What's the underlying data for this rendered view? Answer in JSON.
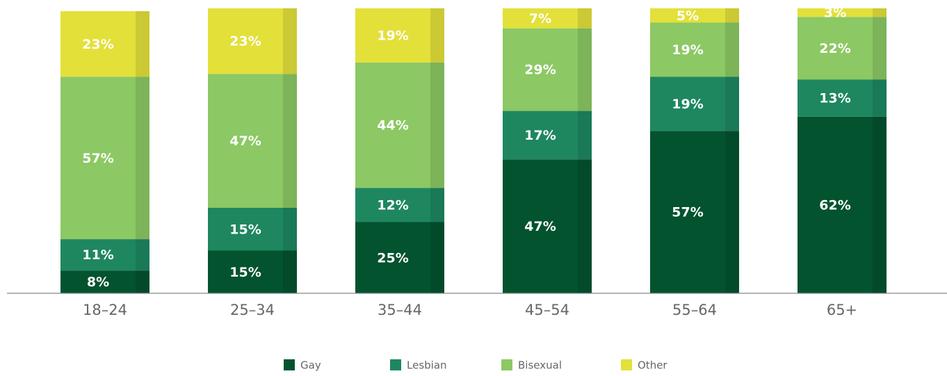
{
  "chart_data": {
    "type": "bar",
    "stacked": true,
    "categories": [
      "18–24",
      "25–34",
      "35–44",
      "45–54",
      "55–64",
      "65+"
    ],
    "ylim": [
      0,
      100
    ],
    "legend": "bottom",
    "series": [
      {
        "name": "Gay",
        "color": "#03532f",
        "values": [
          8,
          15,
          25,
          47,
          57,
          62
        ],
        "value_labels": [
          "8%",
          "15%",
          "25%",
          "47%",
          "57%",
          "62%"
        ]
      },
      {
        "name": "Lesbian",
        "color": "#1e8760",
        "values": [
          11,
          15,
          12,
          17,
          19,
          13
        ],
        "value_labels": [
          "11%",
          "15%",
          "12%",
          "17%",
          "19%",
          "13%"
        ]
      },
      {
        "name": "Bisexual",
        "color": "#8cc864",
        "values": [
          57,
          47,
          44,
          29,
          19,
          22
        ],
        "value_labels": [
          "57%",
          "47%",
          "44%",
          "29%",
          "19%",
          "22%"
        ]
      },
      {
        "name": "Other",
        "color": "#e3e03a",
        "values": [
          23,
          23,
          19,
          7,
          5,
          3
        ],
        "value_labels": [
          "23%",
          "23%",
          "19%",
          "7%",
          "5%",
          "3%"
        ]
      }
    ]
  }
}
